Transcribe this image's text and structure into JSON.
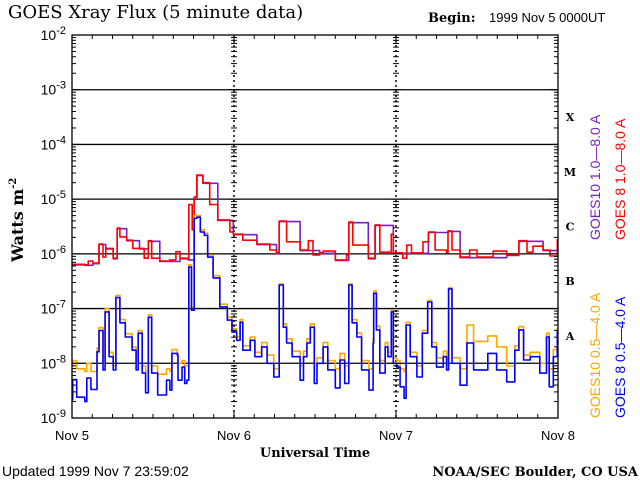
{
  "chart_data": {
    "type": "line",
    "title": "GOES Xray Flux (5 minute data)",
    "begin_label": "Begin:",
    "begin_value": "1999 Nov 5 0000UT",
    "xlabel": "Universal Time",
    "ylabel": "Watts m",
    "ylabel_sup": "-2",
    "x_unit": "hours since 1999 Nov 5 0000UT",
    "xlim": [
      0,
      72
    ],
    "ylim": [
      1e-09,
      0.01
    ],
    "yscale": "log",
    "y_ticks": [
      {
        "base": "10",
        "exp": "-2",
        "log": -2
      },
      {
        "base": "10",
        "exp": "-3",
        "log": -3
      },
      {
        "base": "10",
        "exp": "-4",
        "log": -4
      },
      {
        "base": "10",
        "exp": "-5",
        "log": -5
      },
      {
        "base": "10",
        "exp": "-6",
        "log": -6
      },
      {
        "base": "10",
        "exp": "-7",
        "log": -7
      },
      {
        "base": "10",
        "exp": "-8",
        "log": -8
      },
      {
        "base": "10",
        "exp": "-9",
        "log": -9
      }
    ],
    "x_ticks": [
      {
        "label": "Nov 5",
        "hour": 0
      },
      {
        "label": "Nov 6",
        "hour": 24
      },
      {
        "label": "Nov 7",
        "hour": 48
      },
      {
        "label": "Nov 8",
        "hour": 72
      }
    ],
    "flare_classes": [
      {
        "label": "A",
        "log": -7.5
      },
      {
        "label": "B",
        "log": -6.5
      },
      {
        "label": "C",
        "log": -5.5
      },
      {
        "label": "M",
        "log": -4.5
      },
      {
        "label": "X",
        "log": -3.5
      }
    ],
    "legend_placement": "right (rotated)",
    "series": [
      {
        "name": "GOES10 1.0-8.0 A",
        "color": "#7a1fc0",
        "hours": [
          0,
          1.9,
          3.1,
          4,
          5,
          6.1,
          6.7,
          8.1,
          10,
          11.3,
          13,
          16,
          17.2,
          18.1,
          18.5,
          19.4,
          21.6,
          23.9,
          27.4,
          30.3,
          30.7,
          33.8,
          36.7,
          39,
          41,
          43.9,
          44.9,
          47.6,
          48.1,
          50.3,
          52.8,
          55.7,
          57.5,
          60,
          64.4,
          66.2,
          69.8,
          71.9
        ],
        "log_values": [
          -6.2,
          -6.21,
          -6.18,
          -5.83,
          -5.91,
          -6.09,
          -5.54,
          -5.76,
          -5.91,
          -5.77,
          -6.14,
          -6.09,
          -6.11,
          -4.97,
          -4.57,
          -4.71,
          -5.39,
          -5.65,
          -5.83,
          -5.99,
          -5.41,
          -5.94,
          -5.99,
          -6.12,
          -5.43,
          -6.09,
          -5.48,
          -5.99,
          -5.99,
          -5.99,
          -5.61,
          -5.59,
          -6.07,
          -6.07,
          -6.03,
          -5.77,
          -5.94,
          -5.74
        ]
      },
      {
        "name": "GOES 8 1.0-8.0 A",
        "color": "#ff0000",
        "hours": [
          0,
          1.9,
          2.4,
          3.1,
          4,
          4.6,
          5,
          6.1,
          6.7,
          7.1,
          8.1,
          9,
          10,
          10.7,
          11.3,
          11.8,
          13,
          14.5,
          15.4,
          16,
          17.2,
          17.3,
          17.8,
          18.1,
          18.5,
          19.4,
          20.4,
          21.6,
          23.4,
          23.9,
          25.3,
          27.4,
          29.3,
          30.3,
          30.7,
          31.8,
          33.8,
          35,
          35.7,
          36.7,
          37.2,
          39,
          40.7,
          41,
          41.6,
          42.5,
          43.9,
          44.9,
          45.6,
          46.8,
          47.3,
          47.6,
          48.1,
          49,
          49.6,
          50.3,
          52,
          52.8,
          53.8,
          55.5,
          55.7,
          56.3,
          57.5,
          58.9,
          60,
          62.4,
          64.4,
          66.2,
          67.4,
          68.3,
          69.8,
          70.8,
          71.9
        ],
        "log_values": [
          -6.19,
          -6.2,
          -6.13,
          -6.17,
          -5.82,
          -6.06,
          -5.9,
          -6.08,
          -5.53,
          -5.69,
          -5.75,
          -5.9,
          -5.9,
          -6.08,
          -5.76,
          -6.08,
          -6.13,
          -6.11,
          -5.96,
          -6.08,
          -6.1,
          -5.1,
          -5.56,
          -4.96,
          -4.56,
          -4.7,
          -5.1,
          -5.38,
          -5.6,
          -5.64,
          -5.75,
          -5.82,
          -5.93,
          -5.98,
          -5.4,
          -5.78,
          -5.93,
          -5.76,
          -6.02,
          -5.98,
          -5.95,
          -6.11,
          -6.02,
          -5.42,
          -5.84,
          -5.84,
          -6.08,
          -5.47,
          -5.97,
          -5.97,
          -5.64,
          -5.98,
          -5.98,
          -6.08,
          -5.84,
          -5.98,
          -5.78,
          -5.6,
          -5.93,
          -5.98,
          -5.58,
          -5.93,
          -6.06,
          -5.93,
          -6.06,
          -5.95,
          -6.02,
          -5.76,
          -5.97,
          -5.86,
          -5.93,
          -6.04,
          -5.73
        ]
      },
      {
        "name": "GOES10 0.5-4.0 A",
        "color": "#ffa500",
        "hours": [
          0,
          0.1,
          0.7,
          1.9,
          2.2,
          2.8,
          3.7,
          4,
          4.6,
          4.9,
          5.5,
          6.1,
          6.5,
          7.1,
          7.9,
          8.9,
          9.5,
          9.8,
          10.4,
          10.9,
          11.3,
          11.8,
          12.7,
          14,
          14.5,
          14.8,
          15.6,
          15.7,
          16.3,
          16.7,
          17,
          17.3,
          17.7,
          18.1,
          18.5,
          19,
          19.6,
          20.1,
          20.9,
          21.9,
          23,
          23.7,
          24.4,
          24.9,
          25.3,
          26.4,
          27.1,
          28.1,
          28.9,
          29.9,
          30.7,
          31.3,
          31.8,
          32.6,
          33.8,
          34.3,
          34.8,
          35.3,
          35.9,
          36.3,
          37.2,
          37.9,
          39,
          39.7,
          40.4,
          41,
          41.5,
          42.2,
          42.9,
          44,
          44.6,
          44.7,
          45.1,
          45.6,
          46.4,
          46.8,
          47.3,
          47.6,
          48.1,
          48.6,
          49.2,
          49.5,
          50.1,
          51.1,
          51.9,
          52.7,
          53.3,
          54,
          55,
          55.5,
          55.8,
          56.3,
          57.5,
          58.5,
          59.5,
          60.2,
          61.6,
          62.9,
          64.4,
          65.6,
          66.2,
          66.9,
          67.9,
          69.3,
          70.3,
          70.7,
          71.3,
          71.9
        ],
        "log_values": [
          -8.05,
          -7.95,
          -8.1,
          -8.15,
          -8.0,
          -8.15,
          -7.72,
          -7.35,
          -8.0,
          -7.0,
          -7.8,
          -8.05,
          -6.76,
          -7.2,
          -7.46,
          -7.7,
          -8.0,
          -7.4,
          -8.05,
          -8.15,
          -7.12,
          -8.05,
          -8.2,
          -8.1,
          -8.15,
          -7.75,
          -7.8,
          -8.0,
          -7.95,
          -8.05,
          -8.05,
          -6.2,
          -6.98,
          -5.3,
          -5.3,
          -5.56,
          -5.62,
          -6.02,
          -6.4,
          -6.92,
          -7.16,
          -7.37,
          -7.52,
          -7.2,
          -7.68,
          -7.52,
          -7.8,
          -7.62,
          -7.85,
          -8.1,
          -6.55,
          -7.28,
          -7.55,
          -7.78,
          -8.05,
          -7.78,
          -7.55,
          -7.28,
          -8.0,
          -7.9,
          -7.62,
          -7.95,
          -8.1,
          -7.82,
          -8.05,
          -6.55,
          -7.2,
          -7.45,
          -7.95,
          -8.1,
          -7.55,
          -6.68,
          -7.32,
          -7.95,
          -7.62,
          -7.8,
          -7.02,
          -7.9,
          -7.95,
          -8.1,
          -8.15,
          -7.25,
          -7.8,
          -8.05,
          -7.4,
          -6.85,
          -7.62,
          -7.9,
          -7.78,
          -8.0,
          -6.62,
          -7.9,
          -8.1,
          -7.3,
          -7.6,
          -7.6,
          -7.5,
          -7.7,
          -8.05,
          -7.68,
          -7.33,
          -7.85,
          -7.8,
          -8.0,
          -7.45,
          -8.1,
          -7.75,
          -7.35
        ]
      },
      {
        "name": "GOES 8 0.5-4.0 A",
        "color": "#0000ff",
        "hours": [
          0,
          0.1,
          0.7,
          1.9,
          2.2,
          2.8,
          3.7,
          4,
          4.6,
          4.9,
          5.5,
          6.1,
          6.5,
          7.1,
          7.9,
          8.9,
          9.5,
          9.8,
          10.4,
          10.9,
          11.3,
          11.8,
          12.7,
          14,
          14.5,
          14.8,
          15.6,
          15.7,
          16.3,
          16.7,
          17,
          17.3,
          17.7,
          18.1,
          18.5,
          19,
          19.6,
          20.1,
          20.9,
          21.9,
          23,
          23.7,
          24.4,
          24.9,
          25.3,
          26.4,
          27.1,
          28.1,
          28.9,
          29.9,
          30.7,
          31.3,
          31.8,
          32.6,
          33.8,
          34.3,
          34.8,
          35.3,
          35.9,
          36.3,
          37.2,
          37.9,
          39,
          39.7,
          40.4,
          41,
          41.5,
          42.2,
          42.9,
          44,
          44.6,
          44.7,
          45.1,
          45.6,
          46.4,
          46.8,
          47.3,
          47.6,
          48.1,
          48.6,
          49.2,
          49.5,
          50.1,
          51.1,
          51.9,
          52.7,
          53.3,
          54,
          55,
          55.5,
          55.8,
          56.3,
          57.5,
          58.5,
          59.5,
          60.2,
          61.6,
          62.9,
          64.4,
          65.6,
          66.2,
          66.9,
          67.9,
          69.3,
          70.3,
          70.7,
          71.3,
          71.9
        ],
        "log_values": [
          -8.67,
          -8.3,
          -8.62,
          -8.7,
          -8.27,
          -8.48,
          -7.79,
          -7.4,
          -8.12,
          -7.06,
          -7.88,
          -8.12,
          -6.8,
          -7.26,
          -7.52,
          -7.76,
          -8.12,
          -7.45,
          -8.18,
          -8.54,
          -7.16,
          -8.18,
          -8.58,
          -8.31,
          -8.49,
          -7.82,
          -7.85,
          -8.31,
          -8.07,
          -8.37,
          -8.31,
          -6.24,
          -7.03,
          -5.35,
          -5.33,
          -5.6,
          -5.66,
          -6.06,
          -6.44,
          -6.97,
          -7.21,
          -7.43,
          -7.58,
          -7.25,
          -7.76,
          -7.58,
          -7.88,
          -7.7,
          -8.0,
          -8.25,
          -6.57,
          -7.34,
          -7.63,
          -7.88,
          -8.31,
          -7.88,
          -7.63,
          -7.34,
          -8.37,
          -8.0,
          -7.7,
          -8.12,
          -8.45,
          -7.94,
          -8.37,
          -6.57,
          -7.26,
          -7.52,
          -8.12,
          -8.49,
          -7.63,
          -6.72,
          -7.39,
          -8.18,
          -7.7,
          -7.88,
          -7.06,
          -8.0,
          -8.07,
          -8.43,
          -8.64,
          -7.3,
          -7.88,
          -8.25,
          -7.45,
          -6.88,
          -7.7,
          -8.07,
          -7.88,
          -8.12,
          -6.64,
          -8.0,
          -8.4,
          -7.63,
          -8.12,
          -8.12,
          -7.82,
          -8.12,
          -8.34,
          -7.76,
          -7.39,
          -7.94,
          -7.88,
          -8.18,
          -7.52,
          -8.43,
          -7.88,
          -7.39
        ]
      }
    ]
  },
  "footer": {
    "updated": "Updated 1999 Nov  7 23:59:02",
    "credit": "NOAA/SEC Boulder, CO USA"
  }
}
